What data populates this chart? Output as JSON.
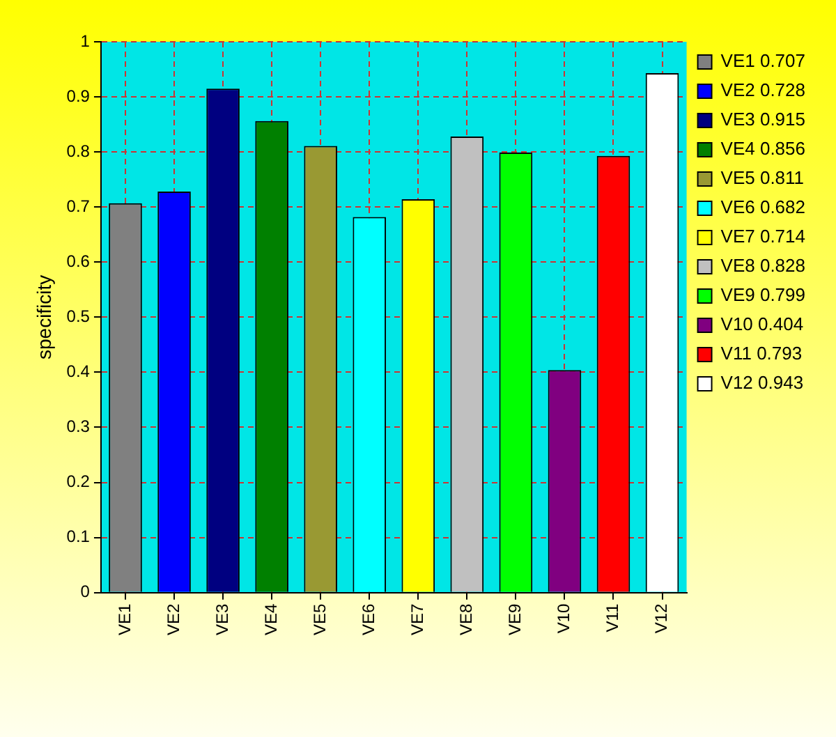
{
  "chart_data": {
    "type": "bar",
    "ylabel": "specificity",
    "categories": [
      "VE1",
      "VE2",
      "VE3",
      "VE4",
      "VE5",
      "VE6",
      "VE7",
      "VE8",
      "VE9",
      "V10",
      "V11",
      "V12"
    ],
    "series": [
      {
        "name": "VE1 0.707",
        "color": "#808080",
        "values": [
          0.707,
          null,
          null,
          null,
          null,
          null,
          null,
          null,
          null,
          null,
          null,
          null
        ]
      },
      {
        "name": "VE2 0.728",
        "color": "#0000ff",
        "values": [
          null,
          0.728,
          null,
          null,
          null,
          null,
          null,
          null,
          null,
          null,
          null,
          null
        ]
      },
      {
        "name": "VE3 0.915",
        "color": "#000080",
        "values": [
          null,
          null,
          0.915,
          null,
          null,
          null,
          null,
          null,
          null,
          null,
          null,
          null
        ]
      },
      {
        "name": "VE4 0.856",
        "color": "#008000",
        "values": [
          null,
          null,
          null,
          0.856,
          null,
          null,
          null,
          null,
          null,
          null,
          null,
          null
        ]
      },
      {
        "name": "VE5 0.811",
        "color": "#999933",
        "values": [
          null,
          null,
          null,
          null,
          0.811,
          null,
          null,
          null,
          null,
          null,
          null,
          null
        ]
      },
      {
        "name": "VE6 0.682",
        "color": "#00ffff",
        "values": [
          null,
          null,
          null,
          null,
          null,
          0.682,
          null,
          null,
          null,
          null,
          null,
          null
        ]
      },
      {
        "name": "VE7 0.714",
        "color": "#ffff00",
        "values": [
          null,
          null,
          null,
          null,
          null,
          null,
          0.714,
          null,
          null,
          null,
          null,
          null
        ]
      },
      {
        "name": "VE8 0.828",
        "color": "#c0c0c0",
        "values": [
          null,
          null,
          null,
          null,
          null,
          null,
          null,
          0.828,
          null,
          null,
          null,
          null
        ]
      },
      {
        "name": "VE9 0.799",
        "color": "#00ff00",
        "values": [
          null,
          null,
          null,
          null,
          null,
          null,
          null,
          null,
          0.799,
          null,
          null,
          null
        ]
      },
      {
        "name": "V10 0.404",
        "color": "#800080",
        "values": [
          null,
          null,
          null,
          null,
          null,
          null,
          null,
          null,
          null,
          0.404,
          null,
          null
        ]
      },
      {
        "name": "V11 0.793",
        "color": "#ff0000",
        "values": [
          null,
          null,
          null,
          null,
          null,
          null,
          null,
          null,
          null,
          null,
          0.793,
          null
        ]
      },
      {
        "name": "V12 0.943",
        "color": "#ffffff",
        "values": [
          null,
          null,
          null,
          null,
          null,
          null,
          null,
          null,
          null,
          null,
          null,
          0.943
        ]
      }
    ],
    "ylim": [
      0,
      1
    ],
    "yticks": [
      0,
      0.1,
      0.2,
      0.3,
      0.4,
      0.5,
      0.6,
      0.7,
      0.8,
      0.9,
      1
    ],
    "grid": true,
    "legend": "right"
  }
}
